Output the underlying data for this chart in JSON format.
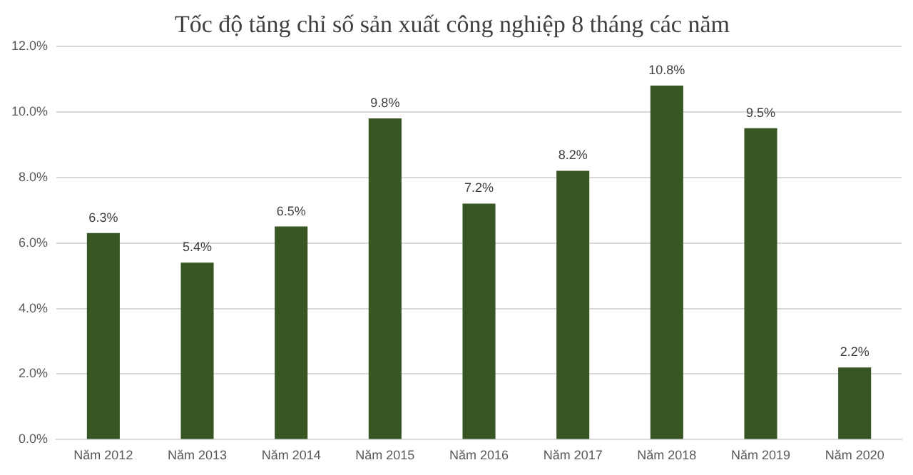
{
  "chart_data": {
    "type": "bar",
    "title": "Tốc độ tăng chỉ số sản xuất công nghiệp 8 tháng các năm",
    "categories": [
      "Năm 2012",
      "Năm 2013",
      "Năm 2014",
      "Năm 2015",
      "Năm 2016",
      "Năm 2017",
      "Năm 2018",
      "Năm 2019",
      "Năm 2020"
    ],
    "values": [
      6.3,
      5.4,
      6.5,
      9.8,
      7.2,
      8.2,
      10.8,
      9.5,
      2.2
    ],
    "value_labels": [
      "6.3%",
      "5.4%",
      "6.5%",
      "9.8%",
      "7.2%",
      "8.2%",
      "10.8%",
      "9.5%",
      "2.2%"
    ],
    "color": "#375623",
    "ylim": [
      0,
      12
    ],
    "yticks": [
      {
        "value": 0,
        "label": "0.0%"
      },
      {
        "value": 2,
        "label": "2.0%"
      },
      {
        "value": 4,
        "label": "4.0%"
      },
      {
        "value": 6,
        "label": "6.0%"
      },
      {
        "value": 8,
        "label": "8.0%"
      },
      {
        "value": 10,
        "label": "10.0%"
      },
      {
        "value": 12,
        "label": "12.0%"
      }
    ],
    "grid": "y",
    "legend": false
  }
}
